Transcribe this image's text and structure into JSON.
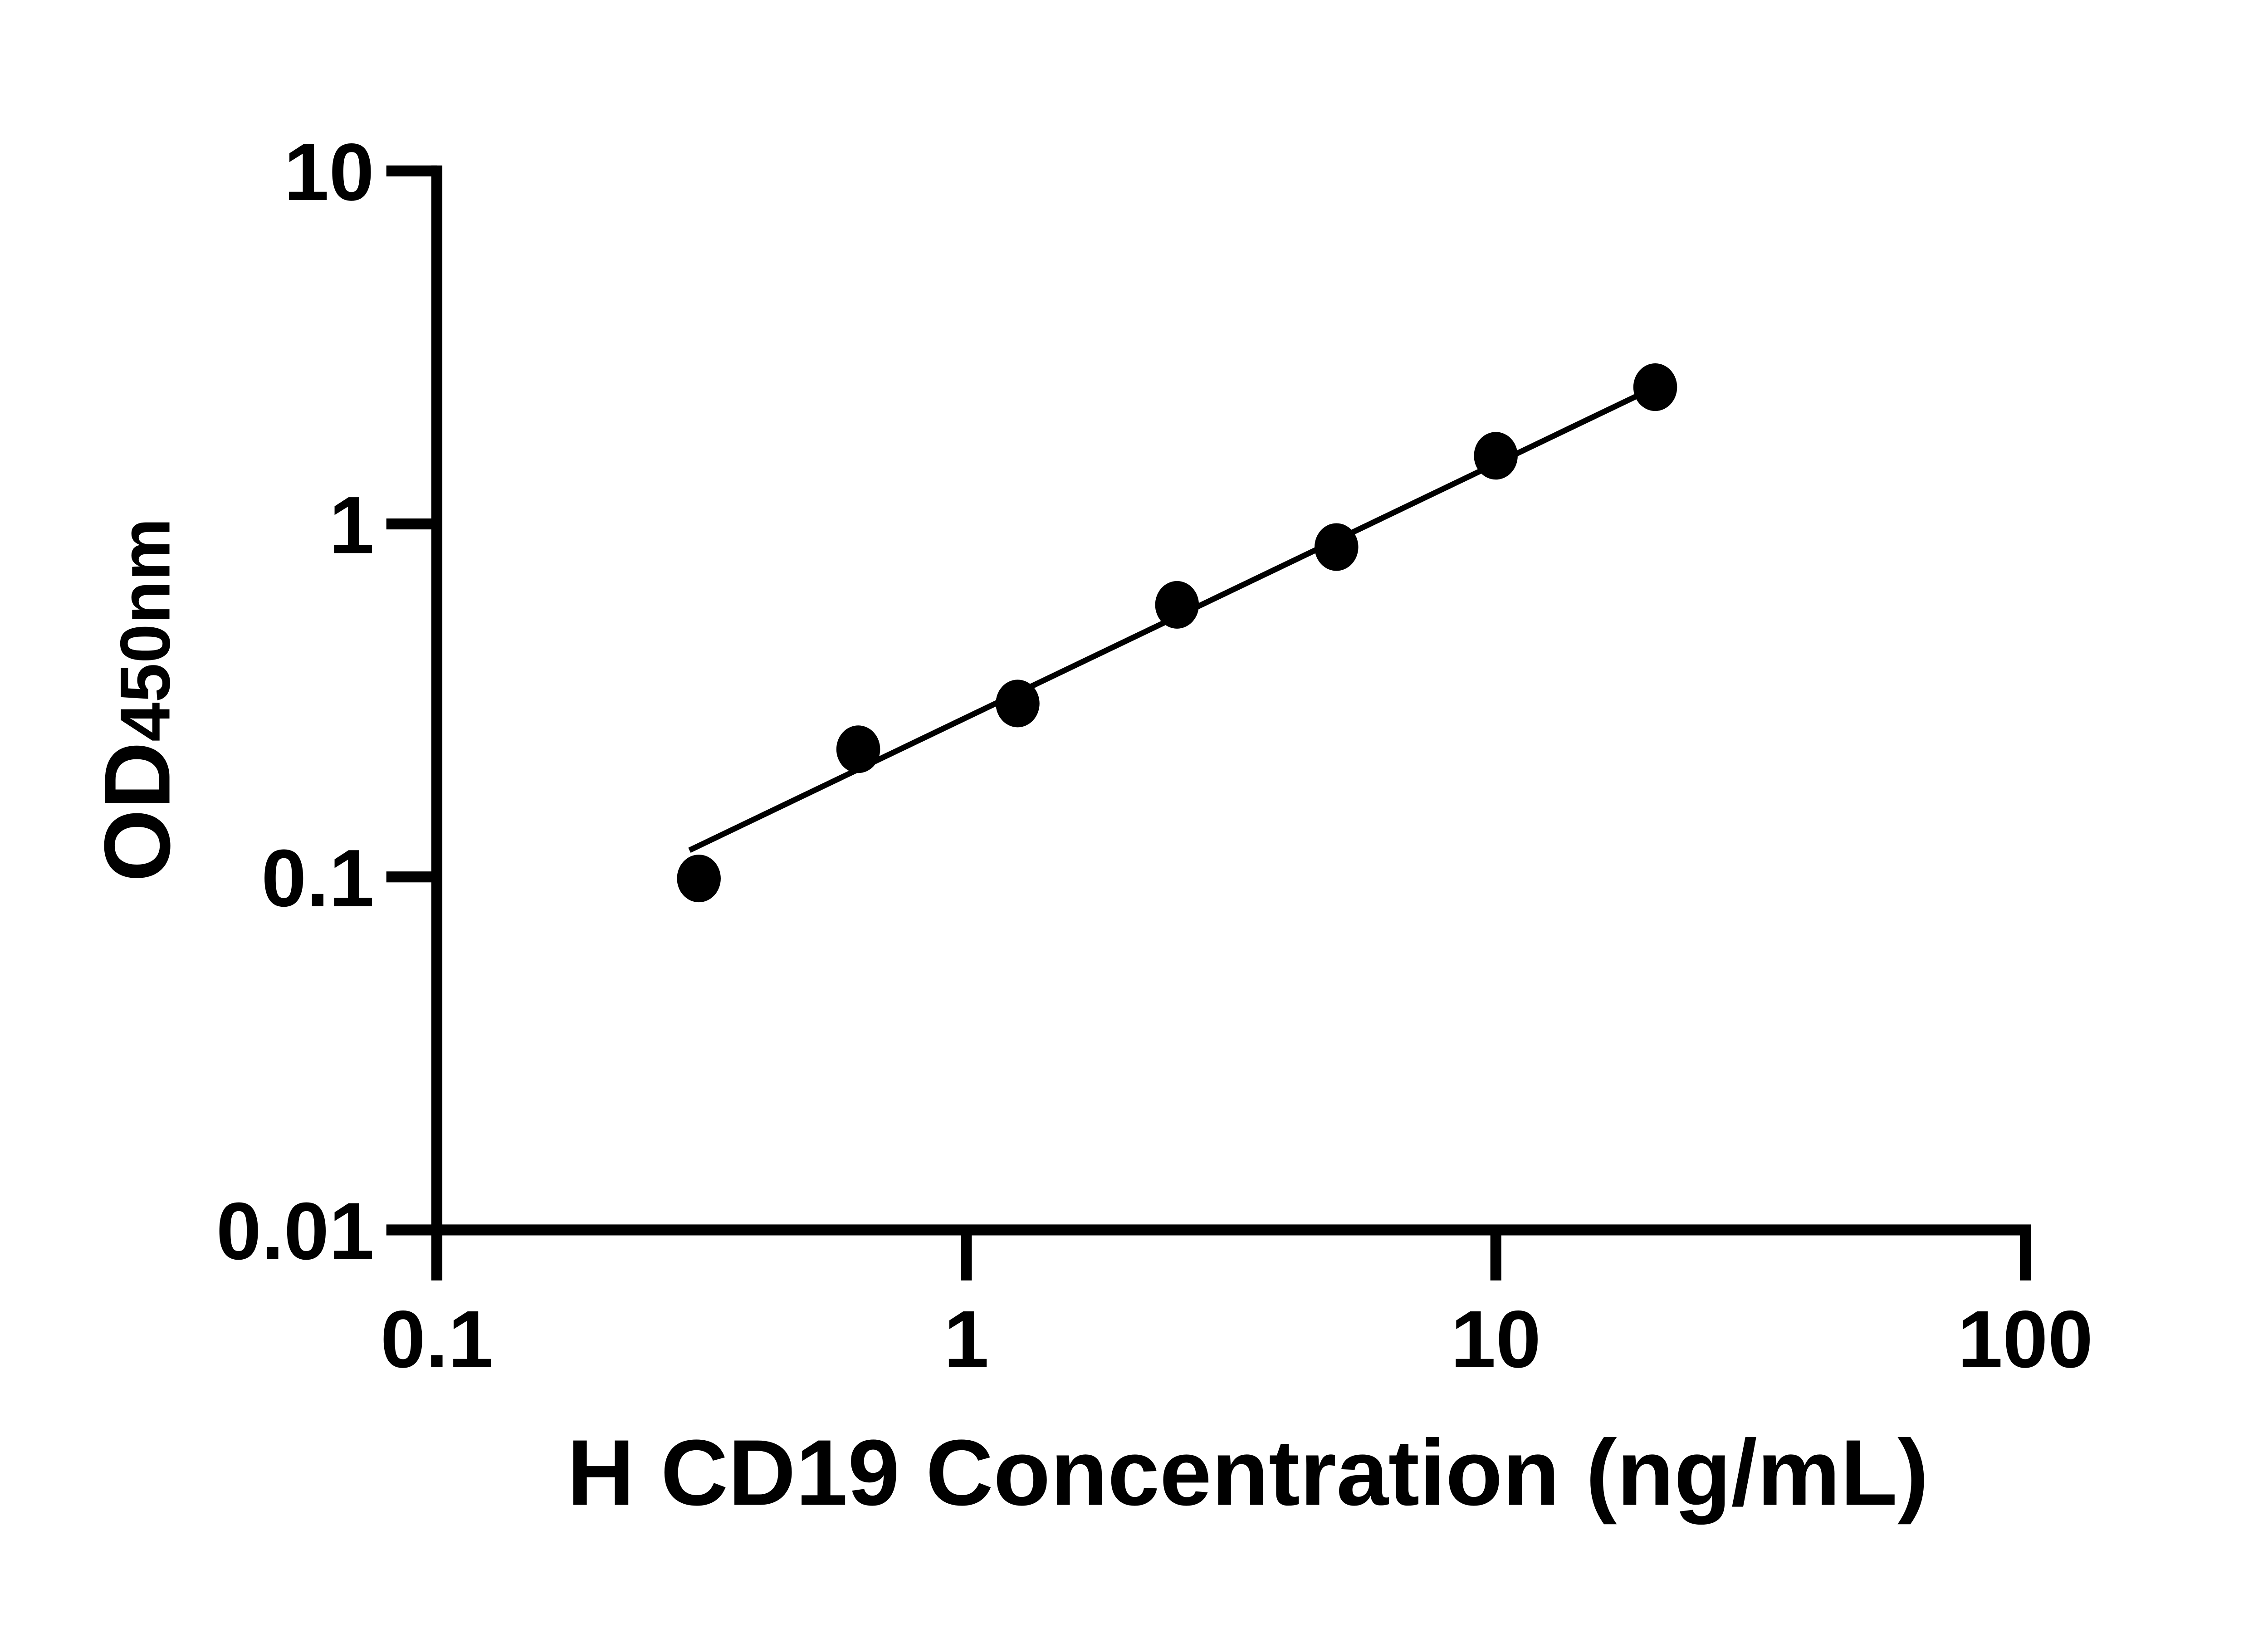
{
  "figure": {
    "background_color": "#ffffff",
    "ink_color": "#000000"
  },
  "chart_data": {
    "type": "scatter",
    "title": "",
    "xlabel": "H CD19 Concentration (ng/mL)",
    "ylabel_main": "OD",
    "ylabel_sub": "450nm",
    "x_scale": "log10",
    "y_scale": "log10",
    "xlim": [
      0.1,
      100
    ],
    "ylim": [
      0.01,
      10
    ],
    "x_ticks": [
      0.1,
      1,
      10,
      100
    ],
    "x_tick_labels": [
      "0.1",
      "1",
      "10",
      "100"
    ],
    "y_ticks": [
      10,
      1,
      0.1,
      0.01
    ],
    "y_tick_labels": [
      "10",
      "1",
      "0.1",
      "0.01"
    ],
    "grid": false,
    "legend": false,
    "marker_color": "#000000",
    "line_color": "#000000",
    "series": [
      {
        "name": "standard-points",
        "type": "scatter",
        "marker": "filled-ellipse",
        "x": [
          0.3125,
          0.625,
          1.25,
          2.5,
          5,
          10,
          20
        ],
        "y": [
          0.099,
          0.23,
          0.31,
          0.59,
          0.86,
          1.56,
          2.44
        ]
      },
      {
        "name": "fit-line",
        "type": "line",
        "x": [
          0.3,
          20
        ],
        "y": [
          0.119,
          2.44
        ]
      }
    ]
  }
}
